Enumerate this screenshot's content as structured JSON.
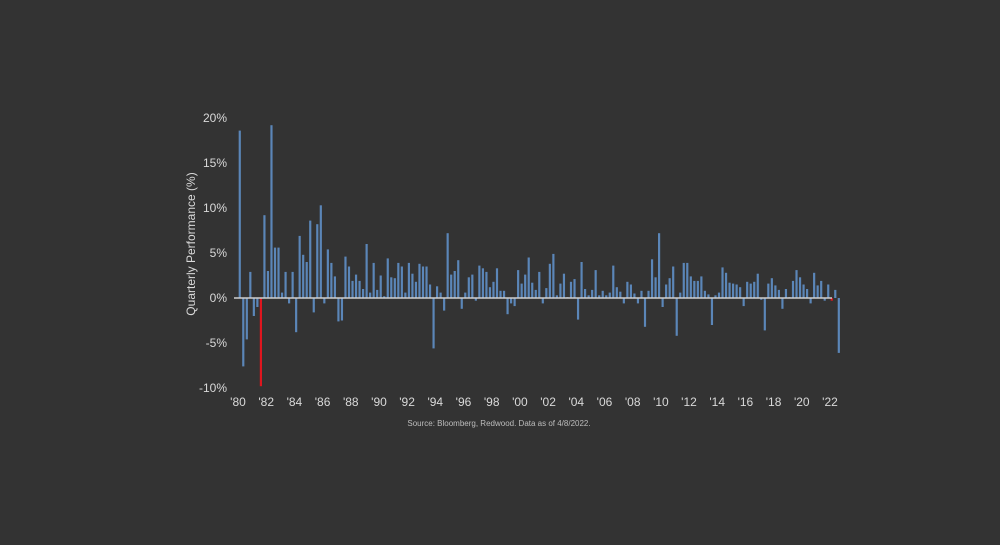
{
  "chart_data": {
    "type": "bar",
    "ylabel": "Quarterly Performance (%)",
    "source": "Source: Bloomberg, Redwood. Data as of 4/8/2022.",
    "ylim": [
      -10,
      20
    ],
    "y_ticks": [
      {
        "value": 20,
        "label": "20%"
      },
      {
        "value": 15,
        "label": "15%"
      },
      {
        "value": 10,
        "label": "10%"
      },
      {
        "value": 5,
        "label": "5%"
      },
      {
        "value": 0,
        "label": "0%"
      },
      {
        "value": -5,
        "label": "-5%"
      },
      {
        "value": -10,
        "label": "-10%"
      }
    ],
    "x_ticks": [
      "'80",
      "'82",
      "'84",
      "'86",
      "'88",
      "'90",
      "'92",
      "'94",
      "'96",
      "'98",
      "'00",
      "'02",
      "'04",
      "'06",
      "'08",
      "'10",
      "'12",
      "'14",
      "'16",
      "'18",
      "'20",
      "'22"
    ],
    "start_year": 1980,
    "colors": {
      "normal": "#5b86b8",
      "highlight": "#e0161f",
      "axis": "#cfcfcf"
    },
    "highlight_indices": [
      6,
      168
    ],
    "values": [
      18.6,
      -7.6,
      -4.6,
      2.9,
      -2.0,
      -1.0,
      -9.8,
      9.2,
      3.0,
      19.2,
      5.6,
      5.6,
      0.6,
      2.9,
      -0.6,
      2.9,
      -3.8,
      6.9,
      4.8,
      4.0,
      8.6,
      -1.6,
      8.2,
      10.3,
      -0.6,
      5.4,
      3.9,
      2.4,
      -2.6,
      -2.5,
      4.6,
      3.5,
      1.9,
      2.6,
      1.9,
      1.0,
      6.0,
      0.6,
      3.9,
      0.9,
      2.5,
      0.2,
      4.4,
      2.3,
      2.2,
      3.9,
      3.5,
      0.6,
      3.9,
      2.7,
      1.8,
      3.8,
      3.5,
      3.5,
      1.5,
      -5.6,
      1.3,
      0.6,
      -1.4,
      7.2,
      2.6,
      3.0,
      4.2,
      -1.2,
      0.6,
      2.3,
      2.6,
      -0.3,
      3.6,
      3.3,
      2.9,
      1.2,
      1.8,
      3.3,
      0.8,
      0.8,
      -1.8,
      -0.6,
      -0.9,
      3.1,
      1.6,
      2.6,
      4.5,
      1.7,
      0.9,
      2.9,
      -0.6,
      1.1,
      3.8,
      4.9,
      0.3,
      1.6,
      2.7,
      0.1,
      1.8,
      2.1,
      -2.4,
      4.0,
      1.0,
      0.3,
      0.9,
      3.1,
      0.3,
      0.8,
      0.3,
      0.6,
      3.6,
      1.2,
      0.7,
      -0.6,
      1.8,
      1.5,
      0.5,
      -0.6,
      0.8,
      -3.2,
      0.8,
      4.3,
      2.3,
      7.2,
      -1.0,
      1.5,
      2.2,
      3.5,
      -4.2,
      0.6,
      3.9,
      3.9,
      2.4,
      1.9,
      1.9,
      2.4,
      0.8,
      0.4,
      -3.0,
      0.3,
      0.6,
      3.4,
      2.8,
      1.7,
      1.6,
      1.5,
      1.2,
      -0.9,
      1.8,
      1.6,
      1.8,
      2.7,
      -0.2,
      -3.6,
      1.6,
      2.2,
      1.4,
      0.9,
      -1.2,
      1.0,
      0.1,
      1.9,
      3.1,
      2.3,
      1.5,
      1.0,
      -0.6,
      2.8,
      1.4,
      1.9,
      -0.3,
      1.5,
      -0.3,
      0.9,
      -6.1
    ]
  }
}
